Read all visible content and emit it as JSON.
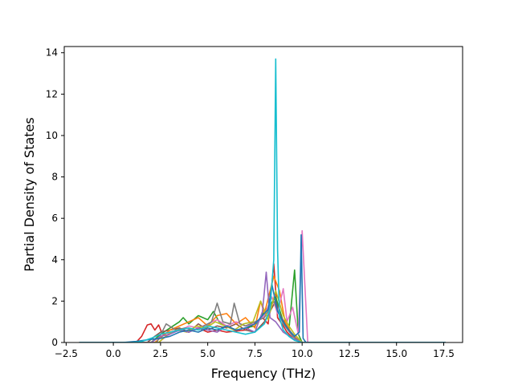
{
  "chart_data": {
    "type": "line",
    "title": "",
    "xlabel": "Frequency (THz)",
    "ylabel": "Partial Density of States",
    "xlim": [
      -2.6,
      18.5
    ],
    "ylim": [
      0,
      14.3
    ],
    "xticks": [
      -2.5,
      0.0,
      2.5,
      5.0,
      7.5,
      10.0,
      12.5,
      15.0,
      17.5
    ],
    "xtick_labels": [
      "−2.5",
      "0.0",
      "2.5",
      "5.0",
      "7.5",
      "10.0",
      "12.5",
      "15.0",
      "17.5"
    ],
    "yticks": [
      0,
      2,
      4,
      6,
      8,
      10,
      12,
      14
    ],
    "ytick_labels": [
      "0",
      "2",
      "4",
      "6",
      "8",
      "10",
      "12",
      "14"
    ],
    "grid": false,
    "legend": "none",
    "series": [
      {
        "color": "#d62728",
        "x": [
          -1.8,
          1.2,
          1.5,
          1.8,
          2.0,
          2.2,
          2.4,
          2.6,
          3.0,
          3.5,
          4.0,
          4.5,
          5.0,
          5.5,
          6.0,
          7.0,
          7.9,
          8.2,
          8.5,
          8.7,
          9.0,
          9.2,
          9.5,
          10.0,
          17.6
        ],
        "y": [
          0,
          0,
          0.3,
          0.85,
          0.9,
          0.6,
          0.85,
          0.4,
          0.5,
          0.6,
          0.5,
          0.7,
          0.5,
          0.6,
          0.5,
          0.6,
          1.2,
          0.9,
          3.8,
          1.2,
          0.8,
          0.5,
          0.2,
          0,
          0
        ]
      },
      {
        "color": "#2ca02c",
        "x": [
          -1.8,
          2.0,
          2.5,
          3.0,
          3.5,
          3.7,
          4.0,
          4.5,
          5.0,
          5.3,
          5.6,
          6.0,
          6.5,
          7.0,
          7.5,
          8.0,
          8.3,
          8.6,
          9.0,
          9.3,
          9.6,
          9.8,
          10.0,
          17.6
        ],
        "y": [
          0,
          0,
          0.4,
          0.7,
          1.0,
          1.2,
          0.9,
          1.3,
          1.1,
          1.5,
          1.0,
          0.8,
          0.6,
          0.7,
          0.8,
          1.5,
          1.8,
          2.2,
          1.0,
          0.6,
          3.5,
          0.4,
          0,
          0
        ]
      },
      {
        "color": "#8c564b",
        "x": [
          -1.8,
          1.8,
          2.2,
          2.5,
          3.0,
          3.5,
          4.0,
          4.5,
          5.0,
          5.5,
          6.0,
          6.5,
          7.0,
          7.5,
          8.0,
          8.3,
          8.6,
          8.9,
          9.2,
          9.5,
          10.0,
          17.6
        ],
        "y": [
          0,
          0,
          0.3,
          0.5,
          0.6,
          0.7,
          0.5,
          0.9,
          0.6,
          0.8,
          0.7,
          0.9,
          0.6,
          0.5,
          1.0,
          1.5,
          2.0,
          1.2,
          0.8,
          0.3,
          0,
          0
        ]
      },
      {
        "color": "#ff7f0e",
        "x": [
          -1.8,
          2.2,
          2.6,
          3.0,
          3.5,
          4.0,
          4.5,
          5.0,
          5.5,
          6.0,
          6.5,
          7.0,
          7.5,
          7.8,
          8.0,
          8.5,
          8.8,
          9.1,
          9.4,
          9.7,
          10.0,
          17.6
        ],
        "y": [
          0,
          0,
          0.3,
          0.6,
          0.8,
          1.0,
          1.2,
          0.8,
          1.3,
          1.4,
          0.9,
          1.2,
          0.7,
          2.0,
          1.4,
          3.2,
          2.5,
          1.0,
          0.5,
          0.2,
          0,
          0
        ]
      },
      {
        "color": "#e377c2",
        "x": [
          -1.8,
          2.4,
          2.8,
          3.2,
          3.6,
          4.0,
          4.5,
          5.0,
          5.5,
          6.0,
          6.5,
          7.0,
          7.5,
          8.0,
          8.4,
          8.7,
          9.0,
          9.2,
          9.5,
          9.8,
          10.0,
          10.3,
          17.6
        ],
        "y": [
          0,
          0,
          0.3,
          0.5,
          0.6,
          0.8,
          0.7,
          0.9,
          1.1,
          0.8,
          1.0,
          0.8,
          0.9,
          1.3,
          2.2,
          1.4,
          2.6,
          1.0,
          1.7,
          0.4,
          5.4,
          0,
          0
        ]
      },
      {
        "color": "#7f7f7f",
        "x": [
          -1.8,
          2.3,
          2.8,
          3.3,
          3.8,
          4.3,
          4.8,
          5.2,
          5.5,
          5.8,
          6.2,
          6.4,
          6.7,
          7.0,
          7.5,
          8.0,
          8.5,
          9.0,
          9.5,
          10.0,
          17.6
        ],
        "y": [
          0,
          0,
          0.9,
          0.6,
          0.7,
          0.6,
          0.8,
          1.0,
          1.9,
          1.0,
          0.9,
          1.9,
          0.9,
          0.8,
          1.0,
          1.2,
          2.0,
          0.9,
          0.3,
          0,
          0
        ]
      },
      {
        "color": "#bcbd22",
        "x": [
          -1.8,
          2.4,
          2.9,
          3.4,
          3.9,
          4.4,
          4.9,
          5.4,
          5.9,
          6.4,
          6.9,
          7.4,
          7.8,
          8.2,
          8.6,
          9.0,
          9.3,
          9.6,
          10.0,
          17.6
        ],
        "y": [
          0,
          0,
          0.4,
          0.6,
          0.5,
          0.8,
          0.7,
          1.0,
          0.8,
          0.6,
          0.9,
          1.0,
          2.0,
          1.1,
          2.5,
          1.3,
          0.8,
          0.4,
          0,
          0
        ]
      },
      {
        "color": "#9467bd",
        "x": [
          -1.8,
          2.0,
          2.5,
          3.0,
          3.5,
          4.0,
          4.5,
          5.0,
          5.5,
          6.0,
          6.5,
          7.0,
          7.5,
          7.9,
          8.1,
          8.3,
          8.6,
          9.0,
          9.5,
          10.0,
          17.6
        ],
        "y": [
          0,
          0,
          0.3,
          0.4,
          0.6,
          0.5,
          0.7,
          0.6,
          0.5,
          0.8,
          0.6,
          0.7,
          0.5,
          1.5,
          3.4,
          1.2,
          1.0,
          0.5,
          0.2,
          0,
          0
        ]
      },
      {
        "color": "#1f77b4",
        "x": [
          -1.8,
          0.5,
          1.2,
          2.0,
          2.5,
          3.0,
          3.5,
          4.0,
          4.5,
          5.0,
          5.5,
          6.0,
          6.5,
          7.0,
          7.5,
          7.9,
          8.2,
          8.4,
          8.7,
          9.0,
          9.3,
          9.6,
          9.85,
          9.95,
          10.05,
          10.2,
          17.6
        ],
        "y": [
          0,
          0,
          0.05,
          0.15,
          0.2,
          0.3,
          0.5,
          0.6,
          0.5,
          0.7,
          0.6,
          0.8,
          0.6,
          0.7,
          0.9,
          1.3,
          1.6,
          2.8,
          1.5,
          1.0,
          0.6,
          0.3,
          0.5,
          5.2,
          0.2,
          0,
          0
        ]
      },
      {
        "color": "#17becf",
        "x": [
          -1.8,
          1.0,
          1.5,
          2.0,
          2.5,
          3.0,
          3.5,
          4.0,
          4.5,
          5.0,
          5.5,
          6.0,
          6.5,
          7.0,
          7.5,
          8.0,
          8.3,
          8.5,
          8.6,
          8.7,
          8.8,
          9.0,
          9.3,
          9.6,
          10.0,
          17.6
        ],
        "y": [
          0,
          0,
          0.05,
          0.2,
          0.4,
          0.5,
          0.6,
          0.7,
          0.6,
          0.8,
          0.7,
          0.6,
          0.5,
          0.4,
          0.5,
          0.9,
          1.6,
          4.0,
          13.7,
          4.5,
          1.2,
          0.6,
          0.3,
          0.1,
          0,
          0
        ]
      }
    ]
  }
}
